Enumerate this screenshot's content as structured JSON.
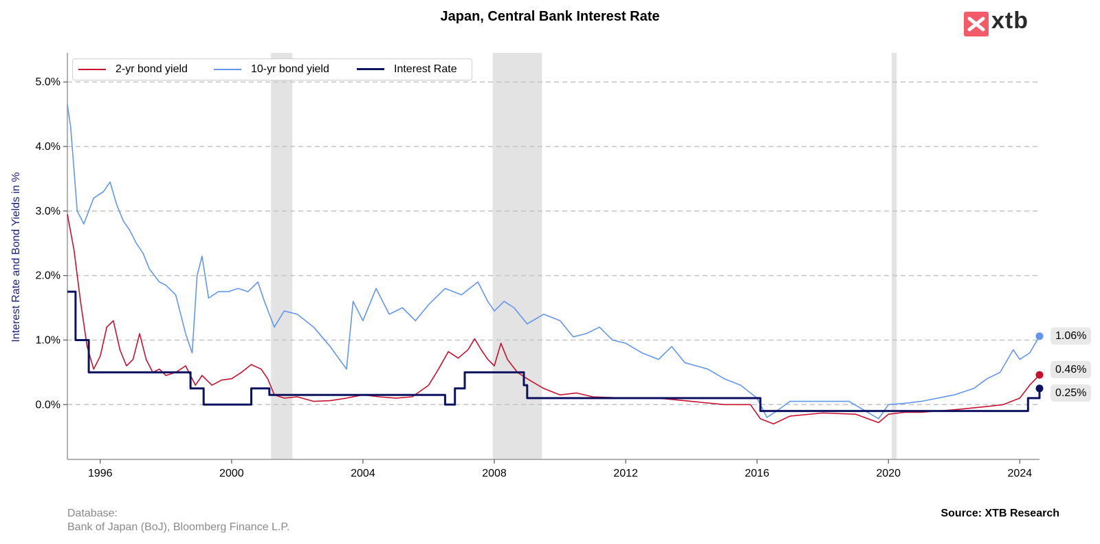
{
  "title": "Japan, Central Bank Interest Rate",
  "logo_text": "xtb",
  "ylabel": "Interest Rate and Bond Yields in %",
  "footer": {
    "db_label": "Database:",
    "db_sources": "Bank of Japan (BoJ), Bloomberg Finance L.P.",
    "source": "Source: XTB Research"
  },
  "end_labels": {
    "ten_yr": "1.06%",
    "two_yr": "0.46%",
    "rate": "0.25%"
  },
  "chart_data": {
    "type": "line",
    "title": "Japan, Central Bank Interest Rate",
    "ylabel": "Interest Rate and Bond Yields in %",
    "xlabel": "",
    "xlim": [
      1995.0,
      2024.6
    ],
    "ylim": [
      -0.85,
      5.45
    ],
    "x_ticks": [
      1996,
      2000,
      2004,
      2008,
      2012,
      2016,
      2020,
      2024
    ],
    "y_ticks": [
      0,
      1,
      2,
      3,
      4,
      5
    ],
    "y_tick_labels": [
      "0.0%",
      "1.0%",
      "2.0%",
      "3.0%",
      "4.0%",
      "5.0%"
    ],
    "grid": "horizontal dashed",
    "legend_position": "top-left",
    "recession_bands": [
      [
        2001.2,
        2001.85
      ],
      [
        2007.95,
        2009.45
      ],
      [
        2020.1,
        2020.25
      ]
    ],
    "colors": {
      "two_yr": "#c8102e",
      "ten_yr": "#6495ed",
      "rate": "#0d1260",
      "band": "#e3e3e3"
    },
    "series": [
      {
        "name": "2-yr bond yield",
        "key": "two_yr",
        "style": "line",
        "x": [
          1995.0,
          1995.2,
          1995.4,
          1995.6,
          1995.8,
          1996.0,
          1996.2,
          1996.4,
          1996.6,
          1996.8,
          1997.0,
          1997.2,
          1997.4,
          1997.6,
          1997.8,
          1998.0,
          1998.3,
          1998.6,
          1998.9,
          1999.1,
          1999.4,
          1999.7,
          2000.0,
          2000.3,
          2000.6,
          2000.9,
          2001.1,
          2001.3,
          2001.6,
          2002.0,
          2002.5,
          2003.0,
          2003.5,
          2004.0,
          2004.5,
          2005.0,
          2005.5,
          2006.0,
          2006.3,
          2006.6,
          2006.9,
          2007.2,
          2007.4,
          2007.6,
          2007.8,
          2008.0,
          2008.2,
          2008.4,
          2008.7,
          2009.0,
          2009.5,
          2010.0,
          2010.5,
          2011.0,
          2012.0,
          2013.0,
          2014.0,
          2015.0,
          2015.8,
          2016.1,
          2016.5,
          2017.0,
          2018.0,
          2019.0,
          2019.7,
          2020.0,
          2020.5,
          2021.0,
          2022.0,
          2023.0,
          2023.5,
          2024.0,
          2024.3,
          2024.6
        ],
        "y": [
          2.95,
          2.4,
          1.6,
          0.9,
          0.55,
          0.75,
          1.2,
          1.3,
          0.85,
          0.6,
          0.7,
          1.1,
          0.7,
          0.5,
          0.55,
          0.45,
          0.5,
          0.6,
          0.3,
          0.45,
          0.3,
          0.38,
          0.4,
          0.5,
          0.62,
          0.55,
          0.4,
          0.15,
          0.1,
          0.12,
          0.05,
          0.06,
          0.1,
          0.15,
          0.12,
          0.1,
          0.12,
          0.3,
          0.55,
          0.82,
          0.72,
          0.85,
          1.02,
          0.85,
          0.7,
          0.6,
          0.95,
          0.7,
          0.5,
          0.4,
          0.25,
          0.15,
          0.18,
          0.12,
          0.1,
          0.1,
          0.05,
          0.0,
          0.0,
          -0.22,
          -0.3,
          -0.18,
          -0.13,
          -0.15,
          -0.28,
          -0.15,
          -0.12,
          -0.12,
          -0.08,
          -0.03,
          0.0,
          0.1,
          0.3,
          0.46
        ]
      },
      {
        "name": "10-yr bond yield",
        "key": "ten_yr",
        "style": "line",
        "x": [
          1995.0,
          1995.1,
          1995.3,
          1995.5,
          1995.8,
          1996.1,
          1996.3,
          1996.5,
          1996.7,
          1996.9,
          1997.1,
          1997.3,
          1997.5,
          1997.8,
          1998.0,
          1998.3,
          1998.6,
          1998.8,
          1998.95,
          1999.1,
          1999.3,
          1999.6,
          1999.9,
          2000.2,
          2000.5,
          2000.8,
          2001.0,
          2001.3,
          2001.6,
          2002.0,
          2002.5,
          2003.0,
          2003.5,
          2003.7,
          2004.0,
          2004.4,
          2004.8,
          2005.2,
          2005.6,
          2006.0,
          2006.5,
          2007.0,
          2007.5,
          2007.8,
          2008.0,
          2008.3,
          2008.6,
          2009.0,
          2009.5,
          2010.0,
          2010.4,
          2010.8,
          2011.2,
          2011.6,
          2012.0,
          2012.5,
          2013.0,
          2013.4,
          2013.8,
          2014.5,
          2015.0,
          2015.5,
          2016.0,
          2016.3,
          2016.6,
          2017.0,
          2018.0,
          2018.8,
          2019.3,
          2019.7,
          2020.0,
          2020.5,
          2021.0,
          2022.0,
          2022.6,
          2023.0,
          2023.4,
          2023.8,
          2024.0,
          2024.3,
          2024.6
        ],
        "y": [
          4.65,
          4.3,
          3.0,
          2.8,
          3.2,
          3.3,
          3.45,
          3.1,
          2.85,
          2.7,
          2.5,
          2.35,
          2.1,
          1.9,
          1.85,
          1.7,
          1.1,
          0.8,
          2.0,
          2.3,
          1.65,
          1.75,
          1.75,
          1.8,
          1.75,
          1.9,
          1.6,
          1.2,
          1.45,
          1.4,
          1.2,
          0.9,
          0.55,
          1.6,
          1.3,
          1.8,
          1.4,
          1.5,
          1.3,
          1.55,
          1.8,
          1.7,
          1.9,
          1.6,
          1.45,
          1.6,
          1.5,
          1.25,
          1.4,
          1.3,
          1.05,
          1.1,
          1.2,
          1.0,
          0.95,
          0.8,
          0.7,
          0.9,
          0.65,
          0.55,
          0.4,
          0.3,
          0.1,
          -0.2,
          -0.1,
          0.05,
          0.05,
          0.05,
          -0.1,
          -0.22,
          0.0,
          0.02,
          0.05,
          0.15,
          0.25,
          0.4,
          0.5,
          0.85,
          0.7,
          0.8,
          1.06
        ]
      },
      {
        "name": "Interest Rate",
        "key": "rate",
        "style": "step",
        "x": [
          1995.0,
          1995.25,
          1995.65,
          1998.75,
          1999.15,
          2000.6,
          2001.15,
          2006.5,
          2006.8,
          2007.1,
          2008.9,
          2009.0,
          2016.1,
          2024.25,
          2024.6
        ],
        "y": [
          1.75,
          1.0,
          0.5,
          0.25,
          0.0,
          0.25,
          0.15,
          0.0,
          0.25,
          0.5,
          0.3,
          0.1,
          -0.1,
          0.1,
          0.25
        ]
      }
    ]
  }
}
